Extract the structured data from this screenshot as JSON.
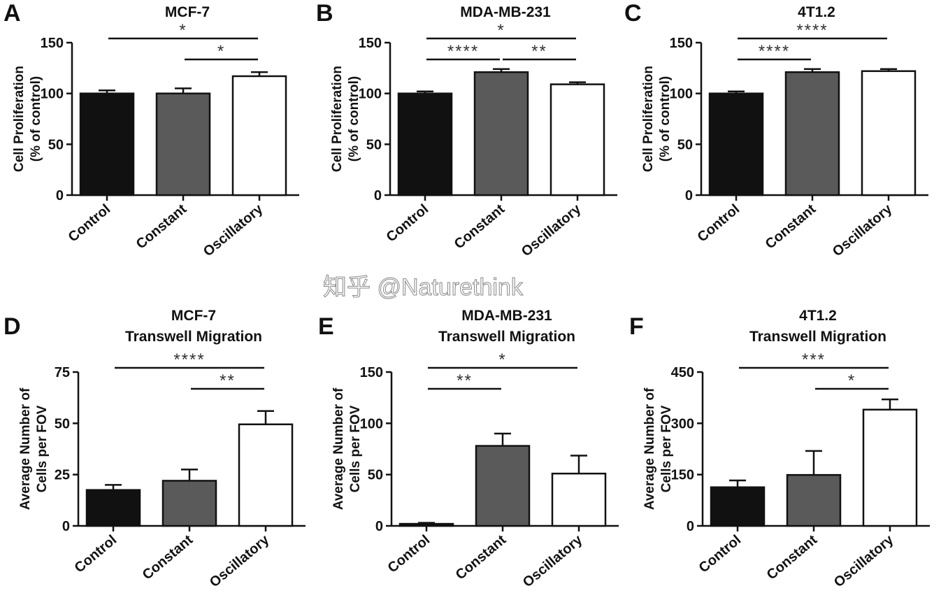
{
  "watermark": "知乎 @Naturethink",
  "colors": {
    "Control": "#111111",
    "Constant": "#5a5a5a",
    "Oscillatory": "#ffffff"
  },
  "chart_data": [
    {
      "type": "bar",
      "letter": "A",
      "title": [
        "MCF-7"
      ],
      "ylabel": [
        "Cell Proliferation",
        "(% of control)"
      ],
      "ylim": [
        0,
        150
      ],
      "ticks": [
        0,
        50,
        100,
        150
      ],
      "categories": [
        "Control",
        "Constant",
        "Oscillatory"
      ],
      "values": [
        100,
        100,
        117
      ],
      "errors": [
        3,
        5,
        4
      ],
      "comparisons": [
        {
          "from": 0,
          "to": 2,
          "label": "*"
        },
        {
          "from": 1,
          "to": 2,
          "label": "*"
        }
      ]
    },
    {
      "type": "bar",
      "letter": "B",
      "title": [
        "MDA-MB-231"
      ],
      "ylabel": [
        "Cell Proliferation",
        "(% of control)"
      ],
      "ylim": [
        0,
        150
      ],
      "ticks": [
        0,
        50,
        100,
        150
      ],
      "categories": [
        "Control",
        "Constant",
        "Oscillatory"
      ],
      "values": [
        100,
        121,
        109
      ],
      "errors": [
        2,
        3,
        2
      ],
      "comparisons": [
        {
          "from": 0,
          "to": 2,
          "label": "*"
        },
        {
          "from": 0,
          "to": 1,
          "label": "****"
        },
        {
          "from": 1,
          "to": 2,
          "label": "**"
        }
      ]
    },
    {
      "type": "bar",
      "letter": "C",
      "title": [
        "4T1.2"
      ],
      "ylabel": [
        "Cell Proliferation",
        "(% of control)"
      ],
      "ylim": [
        0,
        150
      ],
      "ticks": [
        0,
        50,
        100,
        150
      ],
      "categories": [
        "Control",
        "Constant",
        "Oscillatory"
      ],
      "values": [
        100,
        121,
        122
      ],
      "errors": [
        2,
        3,
        2
      ],
      "comparisons": [
        {
          "from": 0,
          "to": 2,
          "label": "****"
        },
        {
          "from": 0,
          "to": 1,
          "label": "****"
        }
      ]
    },
    {
      "type": "bar",
      "letter": "D",
      "title": [
        "MCF-7",
        "Transwell Migration"
      ],
      "ylabel": [
        "Average Number of",
        "Cells per FOV"
      ],
      "ylim": [
        0,
        75
      ],
      "ticks": [
        0,
        25,
        50,
        75
      ],
      "categories": [
        "Control",
        "Constant",
        "Oscillatory"
      ],
      "values": [
        17.5,
        22,
        49.5
      ],
      "errors": [
        2.5,
        5.5,
        6.5
      ],
      "comparisons": [
        {
          "from": 0,
          "to": 2,
          "label": "****"
        },
        {
          "from": 1,
          "to": 2,
          "label": "**"
        }
      ]
    },
    {
      "type": "bar",
      "letter": "E",
      "title": [
        "MDA-MB-231",
        "Transwell Migration"
      ],
      "ylabel": [
        "Average Number of",
        "Cells per FOV"
      ],
      "ylim": [
        0,
        150
      ],
      "ticks": [
        0,
        50,
        100,
        150
      ],
      "categories": [
        "Control",
        "Constant",
        "Oscillatory"
      ],
      "values": [
        2,
        78,
        51
      ],
      "errors": [
        1,
        12,
        17.5
      ],
      "comparisons": [
        {
          "from": 0,
          "to": 2,
          "label": "*"
        },
        {
          "from": 0,
          "to": 1,
          "label": "**"
        }
      ]
    },
    {
      "type": "bar",
      "letter": "F",
      "title": [
        "4T1.2",
        "Transwell Migration"
      ],
      "ylabel": [
        "Average Number of",
        "Cells per FOV"
      ],
      "ylim": [
        0,
        450
      ],
      "ticks": [
        0,
        150,
        300,
        450
      ],
      "categories": [
        "Control",
        "Constant",
        "Oscillatory"
      ],
      "values": [
        113,
        149,
        340
      ],
      "errors": [
        20,
        70,
        30
      ],
      "comparisons": [
        {
          "from": 0,
          "to": 2,
          "label": "***"
        },
        {
          "from": 1,
          "to": 2,
          "label": "*"
        }
      ]
    }
  ]
}
